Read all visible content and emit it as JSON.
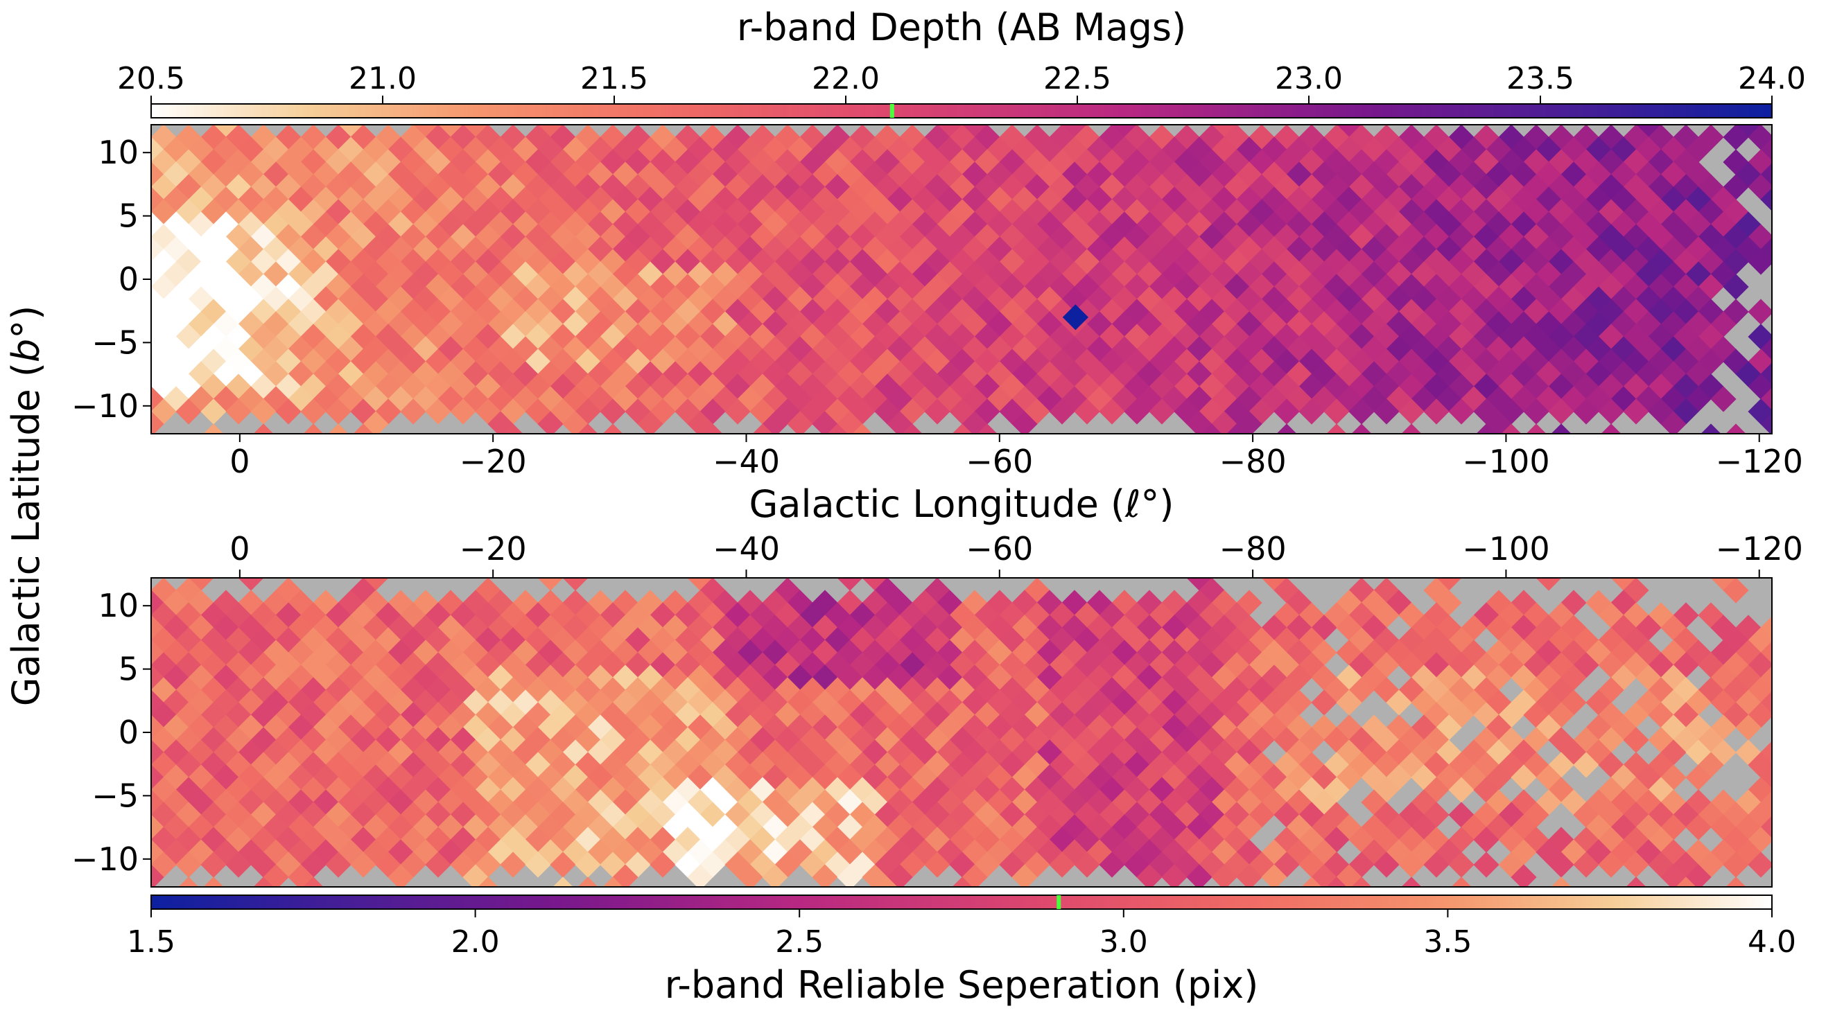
{
  "page": {
    "ylabel": "Galactic Latitude (",
    "ylabel_symbol": "b",
    "ylabel_close": "°)"
  },
  "chart_data": [
    {
      "type": "heatmap",
      "title": "r-band Depth (AB Mags)",
      "xlabel": "Galactic Longitude (",
      "xlabel_symbol": "ℓ",
      "xlabel_close": "°)",
      "x_range": [
        7,
        -121
      ],
      "y_range": [
        -12.2,
        12.2
      ],
      "x_ticks": [
        0,
        -20,
        -40,
        -60,
        -80,
        -100,
        -120
      ],
      "x_tick_labels": [
        "0",
        "−20",
        "−40",
        "−60",
        "−80",
        "−100",
        "−120"
      ],
      "x_axis_position": "bottom",
      "y_ticks": [
        10,
        5,
        0,
        -5,
        -10
      ],
      "y_tick_labels": [
        "10",
        "5",
        "0",
        "−5",
        "−10"
      ],
      "background_color": "#b0b0b0",
      "colorbar": {
        "position": "top",
        "label": "r-band Depth (AB Mags)",
        "range": [
          20.5,
          24.0
        ],
        "ticks": [
          20.5,
          21.0,
          21.5,
          22.0,
          22.5,
          23.0,
          23.5,
          24.0
        ],
        "tick_labels": [
          "20.5",
          "21.0",
          "21.5",
          "22.0",
          "22.5",
          "23.0",
          "23.5",
          "24.0"
        ],
        "colormap": "magma_r",
        "reference_value": 22.1,
        "reference_color": "#4cff3c"
      }
    },
    {
      "type": "heatmap",
      "title": "r-band Reliable Seperation (pix)",
      "x_range": [
        7,
        -121
      ],
      "y_range": [
        -12.2,
        12.2
      ],
      "x_ticks": [
        0,
        -20,
        -40,
        -60,
        -80,
        -100,
        -120
      ],
      "x_tick_labels": [
        "0",
        "−20",
        "−40",
        "−60",
        "−80",
        "−100",
        "−120"
      ],
      "x_axis_position": "top",
      "y_ticks": [
        10,
        5,
        0,
        -5,
        -10
      ],
      "y_tick_labels": [
        "10",
        "5",
        "0",
        "−5",
        "−10"
      ],
      "background_color": "#b0b0b0",
      "colorbar": {
        "position": "bottom",
        "label": "r-band Reliable Seperation (pix)",
        "range": [
          1.5,
          4.0
        ],
        "ticks": [
          1.5,
          2.0,
          2.5,
          3.0,
          3.5,
          4.0
        ],
        "tick_labels": [
          "1.5",
          "2.0",
          "2.5",
          "3.0",
          "3.5",
          "4.0"
        ],
        "colormap": "magma",
        "reference_value": 2.9,
        "reference_color": "#4cff3c"
      }
    }
  ]
}
